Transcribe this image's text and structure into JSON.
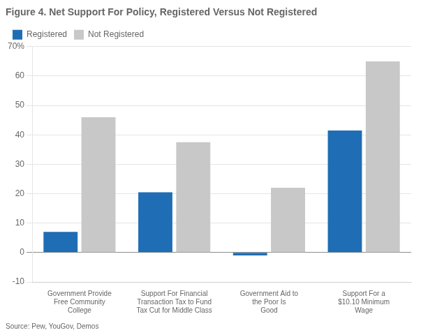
{
  "chart_data": {
    "type": "bar",
    "title": "Figure 4. Net Support For Policy, Registered Versus Not Registered",
    "annotation": "Source: Pew, YouGov, Demos",
    "categories": [
      "Government Provide\nFree Community\nCollege",
      "Support For Financial\nTransaction Tax to Fund\nTax Cut for Middle Class",
      "Government Aid to\nthe Poor Is\nGood",
      "Support For a\n$10.10 Minimum\nWage"
    ],
    "series": [
      {
        "name": "Registered",
        "color": "#1f6eb5",
        "values": [
          7,
          20.5,
          -1,
          41.5
        ]
      },
      {
        "name": "Not Registered",
        "color": "#c8c8c8",
        "values": [
          46,
          37.5,
          22,
          65
        ]
      }
    ],
    "ylim": [
      -10,
      70
    ],
    "yticks": [
      -10,
      0,
      10,
      20,
      30,
      40,
      50,
      60,
      {
        "value": 70,
        "label": "70%"
      }
    ],
    "grid": true,
    "legend": "top"
  }
}
